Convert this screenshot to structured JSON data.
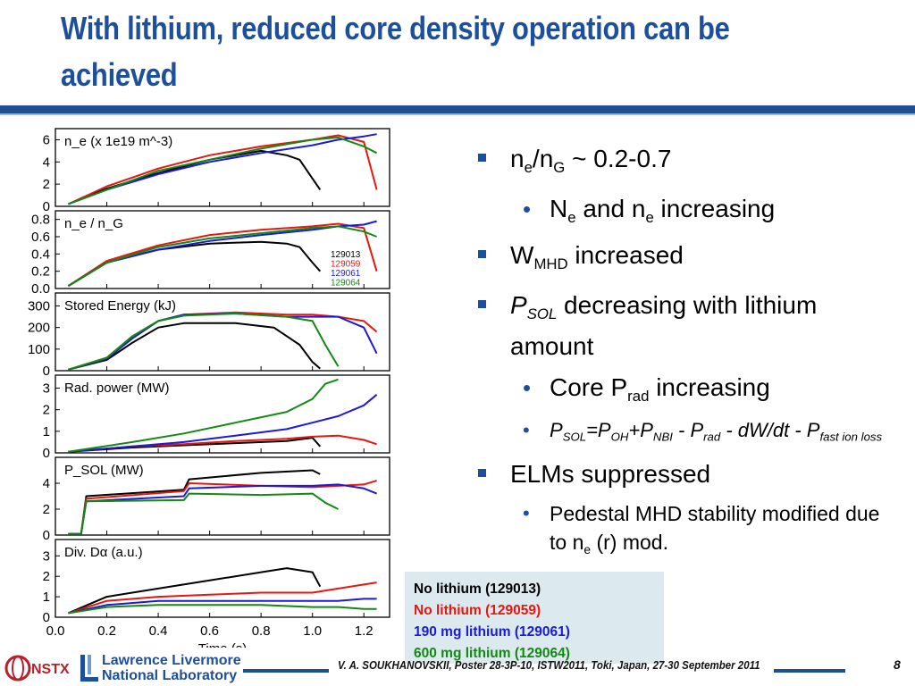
{
  "slide": {
    "title": "With lithium, reduced core density operation can be achieved",
    "page_number": "8",
    "footer": "V. A. SOUKHANOVSKII, Poster 28-3P-10, ISTW2011, Toki, Japan, 27-30 September 2011",
    "llnl_line1": "Lawrence Livermore",
    "llnl_line2": "National Laboratory",
    "nstx_logo": "NSTX",
    "colors": {
      "title": "#1c4f9c",
      "bar": "#1f4f8f",
      "legend_bg": "#dce9ee"
    }
  },
  "bullets": {
    "ne_ratio": {
      "ne": "n",
      "ne_sub": "e",
      "slash_n": "/n",
      "g_sub": "G",
      "rest": " ~ 0.2-0.7"
    },
    "Ne_increasing": {
      "N": "N",
      "N_sub": "e",
      "mid": " and n",
      "n_sub": "e",
      "rest": " increasing"
    },
    "wmhd": {
      "W": "W",
      "W_sub": "MHD",
      "rest": " increased"
    },
    "psol": {
      "P": "P",
      "P_sub": "SOL",
      "rest": " decreasing with lithium amount"
    },
    "core_prad": {
      "pre": "Core P",
      "sub": "rad",
      "rest": " increasing"
    },
    "psol_formula": {
      "p1": "P",
      "s1": "SOL",
      "p2": "=P",
      "s2": "OH",
      "p3": "+P",
      "s3": "NBI",
      "p4": "  - P",
      "s4": "rad",
      "p5": " - dW/dt - P",
      "s5": "fast ion loss"
    },
    "elms": "ELMs suppressed",
    "pedestal": {
      "pre": "Pedestal MHD stability modified due to n",
      "sub": "e",
      "rest": " (r) mod."
    }
  },
  "legend": [
    {
      "label": "No lithium (129013)",
      "color": "#000000"
    },
    {
      "label": "No lithium (129059)",
      "color": "#e8160c"
    },
    {
      "label": "190 mg lithium (129061)",
      "color": "#1a1ad8"
    },
    {
      "label": "600 mg lithium (129064)",
      "color": "#128a12"
    }
  ],
  "chart_data": {
    "type": "line",
    "xlabel": "Time (s)",
    "xlim": [
      0.0,
      1.3
    ],
    "xticks": [
      "0.0",
      "0.2",
      "0.4",
      "0.6",
      "0.8",
      "1.0",
      "1.2"
    ],
    "shot_colors": {
      "129013": "#000000",
      "129059": "#e8160c",
      "129061": "#1a1ad8",
      "129064": "#128a12"
    },
    "panels": [
      {
        "label": "n_e (x 1e19 m^-3)",
        "ylim": [
          0,
          7
        ],
        "yticks": [
          "0",
          "2",
          "4",
          "6"
        ],
        "series": [
          {
            "shot": "129013",
            "t": [
              0.05,
              0.2,
              0.4,
              0.6,
              0.8,
              0.9,
              0.95,
              1.0,
              1.03
            ],
            "y": [
              0.2,
              1.6,
              3.0,
              4.2,
              5.0,
              4.6,
              4.2,
              2.5,
              1.5
            ]
          },
          {
            "shot": "129059",
            "t": [
              0.05,
              0.2,
              0.4,
              0.6,
              0.8,
              1.0,
              1.1,
              1.2,
              1.25
            ],
            "y": [
              0.2,
              1.8,
              3.4,
              4.6,
              5.4,
              6.0,
              6.4,
              5.8,
              1.5
            ]
          },
          {
            "shot": "129061",
            "t": [
              0.05,
              0.2,
              0.4,
              0.6,
              0.8,
              1.0,
              1.1,
              1.2,
              1.25
            ],
            "y": [
              0.2,
              1.5,
              2.9,
              4.0,
              4.8,
              5.5,
              6.0,
              6.3,
              6.5
            ]
          },
          {
            "shot": "129064",
            "t": [
              0.05,
              0.2,
              0.4,
              0.6,
              0.8,
              1.0,
              1.1,
              1.2,
              1.25
            ],
            "y": [
              0.2,
              1.5,
              3.2,
              4.2,
              5.2,
              6.0,
              6.2,
              5.4,
              4.8
            ]
          }
        ]
      },
      {
        "label": "n_e / n_G",
        "ylim": [
          0,
          0.9
        ],
        "yticks": [
          "0.0",
          "0.2",
          "0.4",
          "0.6",
          "0.8"
        ],
        "shot_labels": [
          "129013",
          "129059",
          "129061",
          "129064"
        ],
        "series": [
          {
            "shot": "129013",
            "t": [
              0.05,
              0.2,
              0.4,
              0.6,
              0.8,
              0.9,
              0.95,
              1.0,
              1.03
            ],
            "y": [
              0.03,
              0.3,
              0.45,
              0.52,
              0.54,
              0.52,
              0.48,
              0.3,
              0.2
            ]
          },
          {
            "shot": "129059",
            "t": [
              0.05,
              0.2,
              0.4,
              0.6,
              0.8,
              1.0,
              1.1,
              1.2,
              1.25
            ],
            "y": [
              0.03,
              0.32,
              0.5,
              0.62,
              0.68,
              0.72,
              0.75,
              0.7,
              0.2
            ]
          },
          {
            "shot": "129061",
            "t": [
              0.05,
              0.2,
              0.4,
              0.6,
              0.8,
              1.0,
              1.1,
              1.2,
              1.25
            ],
            "y": [
              0.03,
              0.3,
              0.45,
              0.55,
              0.62,
              0.68,
              0.72,
              0.74,
              0.78
            ]
          },
          {
            "shot": "129064",
            "t": [
              0.05,
              0.2,
              0.4,
              0.6,
              0.8,
              1.0,
              1.1,
              1.2,
              1.25
            ],
            "y": [
              0.03,
              0.3,
              0.48,
              0.58,
              0.64,
              0.7,
              0.72,
              0.66,
              0.6
            ]
          }
        ]
      },
      {
        "label": "Stored Energy (kJ)",
        "ylim": [
          0,
          360
        ],
        "yticks": [
          "0",
          "100",
          "200",
          "300"
        ],
        "series": [
          {
            "shot": "129013",
            "t": [
              0.05,
              0.2,
              0.3,
              0.4,
              0.5,
              0.7,
              0.85,
              0.95,
              1.0,
              1.03
            ],
            "y": [
              5,
              50,
              130,
              200,
              220,
              220,
              200,
              120,
              40,
              10
            ]
          },
          {
            "shot": "129059",
            "t": [
              0.05,
              0.2,
              0.3,
              0.4,
              0.5,
              0.7,
              0.9,
              1.0,
              1.1,
              1.2,
              1.25
            ],
            "y": [
              5,
              60,
              160,
              230,
              260,
              270,
              260,
              260,
              250,
              230,
              180
            ]
          },
          {
            "shot": "129061",
            "t": [
              0.05,
              0.2,
              0.3,
              0.4,
              0.5,
              0.7,
              0.9,
              1.0,
              1.1,
              1.2,
              1.25
            ],
            "y": [
              5,
              55,
              150,
              230,
              260,
              265,
              250,
              250,
              250,
              200,
              80
            ]
          },
          {
            "shot": "129064",
            "t": [
              0.05,
              0.2,
              0.3,
              0.4,
              0.5,
              0.7,
              0.9,
              1.0,
              1.05,
              1.1
            ],
            "y": [
              5,
              60,
              160,
              230,
              255,
              265,
              250,
              230,
              120,
              20
            ]
          }
        ]
      },
      {
        "label": "Rad. power (MW)",
        "ylim": [
          0,
          3.6
        ],
        "yticks": [
          "0",
          "1",
          "2",
          "3"
        ],
        "series": [
          {
            "shot": "129013",
            "t": [
              0.05,
              0.3,
              0.5,
              0.7,
              0.9,
              1.0,
              1.03
            ],
            "y": [
              0.05,
              0.25,
              0.35,
              0.45,
              0.55,
              0.7,
              0.3
            ]
          },
          {
            "shot": "129059",
            "t": [
              0.05,
              0.3,
              0.5,
              0.7,
              0.9,
              1.0,
              1.1,
              1.2,
              1.25
            ],
            "y": [
              0.05,
              0.3,
              0.4,
              0.55,
              0.65,
              0.75,
              0.8,
              0.6,
              0.4
            ]
          },
          {
            "shot": "129061",
            "t": [
              0.05,
              0.3,
              0.5,
              0.7,
              0.9,
              1.0,
              1.1,
              1.2,
              1.25
            ],
            "y": [
              0.05,
              0.3,
              0.5,
              0.8,
              1.1,
              1.4,
              1.7,
              2.2,
              2.7
            ]
          },
          {
            "shot": "129064",
            "t": [
              0.05,
              0.3,
              0.5,
              0.7,
              0.9,
              1.0,
              1.05,
              1.1
            ],
            "y": [
              0.05,
              0.5,
              0.9,
              1.4,
              1.9,
              2.5,
              3.2,
              3.4
            ]
          }
        ]
      },
      {
        "label": "P_SOL (MW)",
        "ylim": [
          0,
          6
        ],
        "yticks": [
          "0",
          "2",
          "4"
        ],
        "series": [
          {
            "shot": "129013",
            "t": [
              0.05,
              0.1,
              0.12,
              0.5,
              0.52,
              0.8,
              1.0,
              1.03
            ],
            "y": [
              0.1,
              0.1,
              3.0,
              3.5,
              4.3,
              4.8,
              5.0,
              4.7
            ]
          },
          {
            "shot": "129059",
            "t": [
              0.05,
              0.1,
              0.12,
              0.5,
              0.52,
              0.8,
              1.0,
              1.1,
              1.2,
              1.25
            ],
            "y": [
              0.1,
              0.1,
              2.8,
              3.4,
              4.0,
              3.8,
              3.7,
              3.8,
              3.9,
              4.2
            ]
          },
          {
            "shot": "129061",
            "t": [
              0.05,
              0.1,
              0.12,
              0.5,
              0.52,
              0.8,
              1.0,
              1.1,
              1.2,
              1.25
            ],
            "y": [
              0.1,
              0.1,
              2.6,
              3.0,
              3.6,
              3.8,
              3.8,
              3.9,
              3.6,
              3.2
            ]
          },
          {
            "shot": "129064",
            "t": [
              0.05,
              0.1,
              0.12,
              0.5,
              0.52,
              0.8,
              1.0,
              1.05,
              1.1
            ],
            "y": [
              0.1,
              0.1,
              2.6,
              2.7,
              3.2,
              3.1,
              3.2,
              2.5,
              2.0
            ]
          }
        ]
      },
      {
        "label": "Div. Dα (a.u.)",
        "ylim": [
          0,
          3.8
        ],
        "yticks": [
          "0",
          "1",
          "2",
          "3"
        ],
        "series": [
          {
            "shot": "129013",
            "t": [
              0.05,
              0.2,
              0.4,
              0.6,
              0.8,
              0.9,
              1.0,
              1.03
            ],
            "y": [
              0.2,
              1.0,
              1.4,
              1.8,
              2.2,
              2.4,
              2.2,
              1.5
            ]
          },
          {
            "shot": "129059",
            "t": [
              0.05,
              0.2,
              0.4,
              0.6,
              0.8,
              1.0,
              1.1,
              1.2,
              1.25
            ],
            "y": [
              0.2,
              0.8,
              1.0,
              1.1,
              1.2,
              1.2,
              1.4,
              1.6,
              1.7
            ]
          },
          {
            "shot": "129061",
            "t": [
              0.05,
              0.2,
              0.4,
              0.6,
              0.8,
              1.0,
              1.1,
              1.2,
              1.25
            ],
            "y": [
              0.2,
              0.6,
              0.8,
              0.8,
              0.8,
              0.8,
              0.8,
              0.9,
              0.9
            ]
          },
          {
            "shot": "129064",
            "t": [
              0.05,
              0.2,
              0.4,
              0.6,
              0.8,
              1.0,
              1.1,
              1.2,
              1.25
            ],
            "y": [
              0.2,
              0.5,
              0.6,
              0.6,
              0.6,
              0.5,
              0.5,
              0.4,
              0.4
            ]
          }
        ]
      }
    ]
  }
}
